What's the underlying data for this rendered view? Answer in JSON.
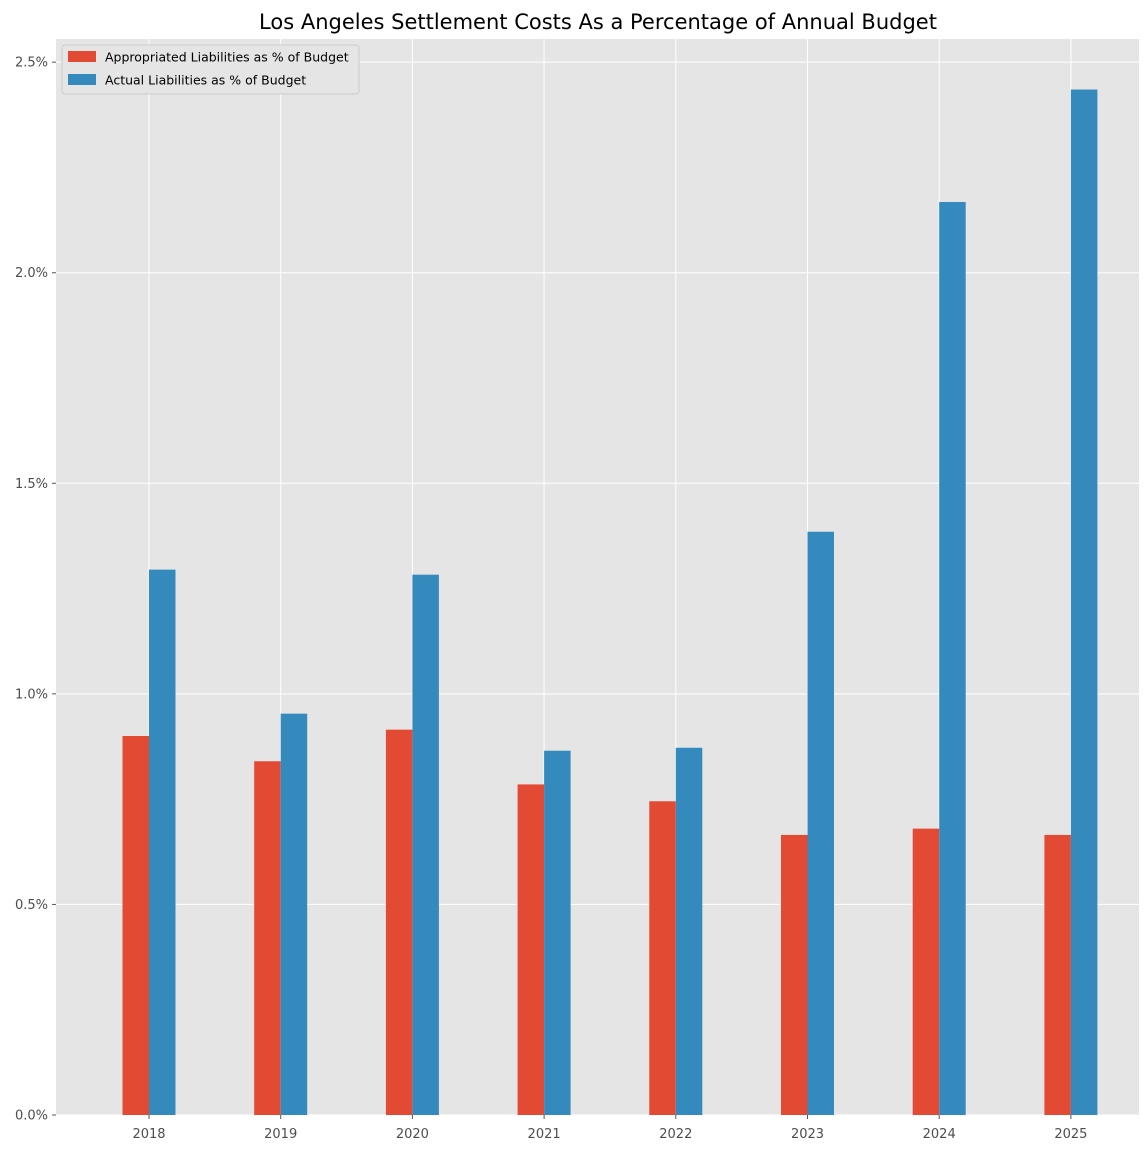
{
  "chart_data": {
    "type": "bar",
    "title": "Los Angeles Settlement Costs As a Percentage of Annual Budget",
    "xlabel": "",
    "ylabel": "",
    "categories": [
      "2018",
      "2019",
      "2020",
      "2021",
      "2022",
      "2023",
      "2024",
      "2025"
    ],
    "series": [
      {
        "name": "Appropriated Liabilities as % of Budget",
        "color": "#E24A33",
        "values": [
          0.9,
          0.84,
          0.915,
          0.785,
          0.745,
          0.665,
          0.68,
          0.665
        ]
      },
      {
        "name": "Actual Liabilities as % of Budget",
        "color": "#348ABD",
        "values": [
          1.295,
          0.953,
          1.283,
          0.865,
          0.872,
          1.385,
          2.168,
          2.435
        ]
      }
    ],
    "ylim": [
      0,
      2.555
    ],
    "yticks": [
      0,
      0.5,
      1.0,
      1.5,
      2.0,
      2.5
    ],
    "ytick_labels": [
      "0.0%",
      "0.5%",
      "1.0%",
      "1.5%",
      "2.0%",
      "2.5%"
    ],
    "grid": true,
    "legend_position": "top-left",
    "background": "#E5E5E5"
  }
}
